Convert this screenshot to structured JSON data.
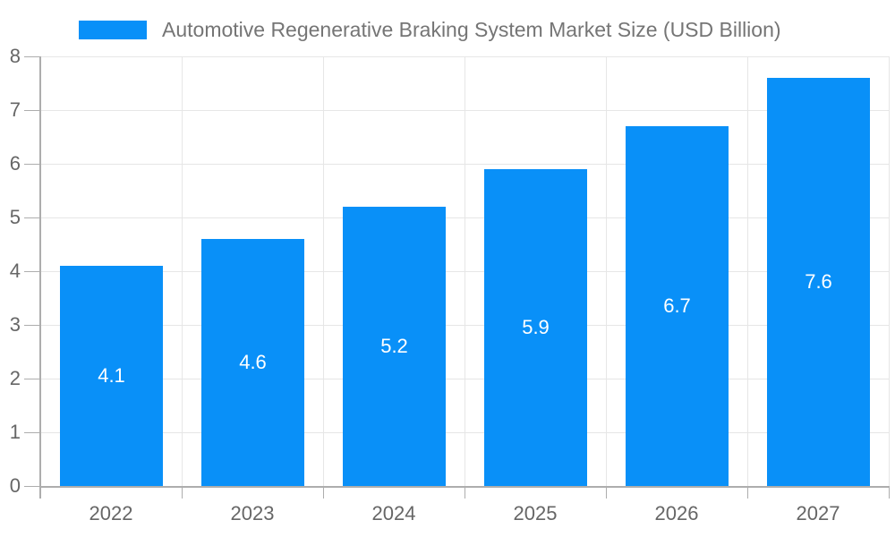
{
  "legend": {
    "label": "Automotive Regenerative Braking System Market Size (USD Billion)"
  },
  "chart_data": {
    "type": "bar",
    "title": "Automotive Regenerative Braking System Market Size (USD Billion)",
    "categories": [
      "2022",
      "2023",
      "2024",
      "2025",
      "2026",
      "2027"
    ],
    "values": [
      4.1,
      4.6,
      5.2,
      5.9,
      6.7,
      7.6
    ],
    "bar_labels": [
      "4.1",
      "4.6",
      "5.2",
      "5.9",
      "6.7",
      "7.6"
    ],
    "xlabel": "",
    "ylabel": "",
    "ylim": [
      0,
      8
    ],
    "yticks": [
      0,
      1,
      2,
      3,
      4,
      5,
      6,
      7,
      8
    ],
    "grid": true,
    "legend_position": "top-left",
    "colors": {
      "bar": "#0990F8",
      "bar_label": "#FFFFFF",
      "grid": "#E6E6E6",
      "axis": "#ADADAD",
      "tick_label": "#666666",
      "legend_text": "#757575",
      "background": "#FFFFFF"
    }
  }
}
